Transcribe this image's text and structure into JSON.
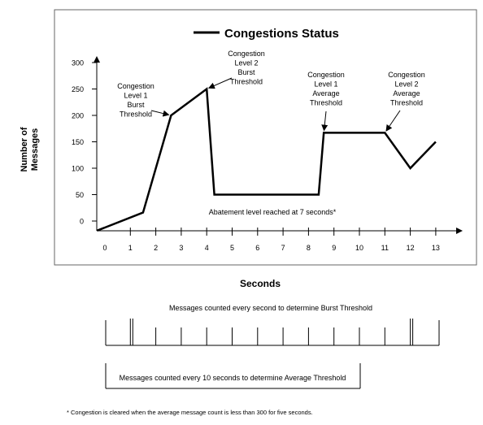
{
  "chart_data": {
    "type": "line",
    "legend_position": "top-center",
    "title": "",
    "xlabel": "Seconds",
    "ylabel": [
      "Number of",
      "Messages"
    ],
    "xlim": [
      -0.3,
      14
    ],
    "ylim": [
      -18,
      320
    ],
    "x_ticks": [
      0,
      1,
      2,
      3,
      4,
      5,
      6,
      7,
      8,
      9,
      10,
      11,
      12,
      13
    ],
    "y_ticks": [
      0,
      50,
      100,
      150,
      200,
      250,
      300
    ],
    "grid": false,
    "series": [
      {
        "name": "Congestions Status",
        "color": "#000000",
        "x": [
          -0.3,
          1.5,
          2.6,
          4.0,
          4.3,
          8.4,
          8.6,
          11.0,
          12.0,
          13.0
        ],
        "y": [
          -18,
          16,
          200,
          250,
          50,
          50,
          167,
          167,
          100,
          150
        ]
      }
    ],
    "annotations": [
      {
        "name": "burst-level-1",
        "lines": [
          "Congestion",
          "Level 1",
          "Burst",
          "Threshold"
        ],
        "point": [
          2.6,
          200
        ]
      },
      {
        "name": "burst-level-2",
        "lines": [
          "Congestion",
          "Level 2",
          "Burst",
          "Threshold"
        ],
        "point": [
          4.0,
          250
        ]
      },
      {
        "name": "average-level-1",
        "lines": [
          "Congestion",
          "Level 1",
          "Average",
          "Threshold"
        ],
        "point": [
          8.6,
          167
        ]
      },
      {
        "name": "average-level-2",
        "lines": [
          "Congestion",
          "Level 2",
          "Average",
          "Threshold"
        ],
        "point": [
          11.0,
          167
        ]
      }
    ],
    "abatement_note": "Abatement level reached at 7 seconds*"
  },
  "burst_caption": "Messages counted every second  to determine Burst Threshold",
  "average_caption": "Messages counted every  10 seconds  to determine Average Threshold",
  "footnote": "* Congestion is cleared when the average message count is less than 300 for five seconds."
}
